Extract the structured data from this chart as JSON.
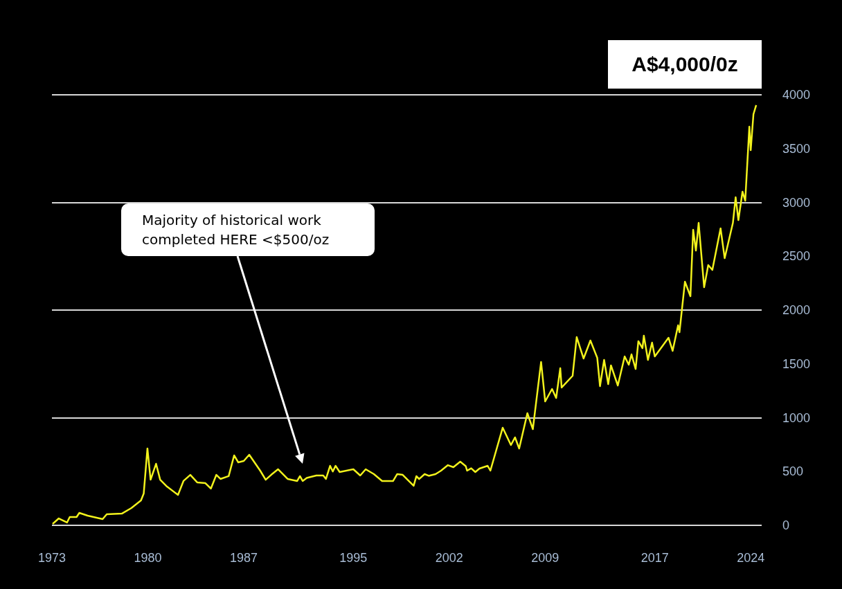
{
  "chart_data": {
    "type": "line",
    "annotations": [
      "A$4,000/0z",
      "Majority of historical work completed HERE <$500/oz"
    ],
    "x": [
      1973.05,
      1973.5,
      1974.1,
      1974.3,
      1974.8,
      1975.0,
      1975.6,
      1976.7,
      1977.0,
      1978.1,
      1978.8,
      1979.5,
      1979.7,
      1979.97,
      1980.2,
      1980.6,
      1980.9,
      1981.4,
      1982.2,
      1982.6,
      1983.1,
      1983.6,
      1984.2,
      1984.6,
      1985.0,
      1985.3,
      1985.9,
      1986.3,
      1986.6,
      1987.0,
      1987.4,
      1988.2,
      1988.6,
      1989.0,
      1989.5,
      1990.2,
      1990.9,
      1991.1,
      1991.3,
      1991.6,
      1992.3,
      1992.8,
      1993.0,
      1993.3,
      1993.5,
      1993.7,
      1994.0,
      1995.0,
      1995.5,
      1995.9,
      1996.5,
      1997.1,
      1997.9,
      1998.2,
      1998.6,
      1999.4,
      1999.6,
      1999.8,
      2000.2,
      2000.5,
      2001.0,
      2001.4,
      2001.9,
      2002.3,
      2002.8,
      2003.2,
      2003.3,
      2003.6,
      2003.9,
      2004.2,
      2004.8,
      2005.0,
      2005.9,
      2006.5,
      2006.8,
      2007.1,
      2007.7,
      2008.1,
      2008.7,
      2009.0,
      2009.5,
      2009.8,
      2010.1,
      2010.2,
      2011.0,
      2011.3,
      2011.8,
      2012.3,
      2012.8,
      2013.0,
      2013.3,
      2013.6,
      2013.8,
      2014.3,
      2014.8,
      2015.1,
      2015.3,
      2015.6,
      2015.8,
      2016.1,
      2016.2,
      2016.5,
      2016.8,
      2017.0,
      2018.0,
      2018.3,
      2018.7,
      2018.8,
      2019.2,
      2019.6,
      2019.8,
      2020.0,
      2020.2,
      2020.6,
      2020.9,
      2021.2,
      2021.8,
      2022.1,
      2022.7,
      2022.9,
      2023.1,
      2023.4,
      2023.6,
      2023.9,
      2024.0,
      2024.2,
      2024.4
    ],
    "series": [
      {
        "color": "#f2f21c",
        "values": [
          13,
          64,
          26,
          77,
          77,
          116,
          90,
          58,
          103,
          109,
          161,
          231,
          296,
          714,
          424,
          572,
          424,
          360,
          283,
          412,
          469,
          399,
          392,
          341,
          469,
          431,
          457,
          650,
          585,
          598,
          656,
          508,
          424,
          469,
          521,
          431,
          412,
          457,
          412,
          440,
          463,
          463,
          431,
          553,
          500,
          553,
          495,
          521,
          463,
          521,
          476,
          412,
          412,
          476,
          469,
          367,
          457,
          430,
          476,
          460,
          476,
          508,
          559,
          540,
          592,
          550,
          508,
          530,
          495,
          527,
          553,
          508,
          907,
          746,
          817,
          714,
          1042,
          894,
          1518,
          1151,
          1267,
          1183,
          1460,
          1280,
          1389,
          1749,
          1550,
          1717,
          1556,
          1293,
          1537,
          1312,
          1486,
          1299,
          1569,
          1492,
          1588,
          1453,
          1711,
          1646,
          1762,
          1537,
          1698,
          1569,
          1743,
          1621,
          1859,
          1794,
          2264,
          2129,
          2746,
          2553,
          2810,
          2212,
          2418,
          2373,
          2759,
          2482,
          2810,
          3048,
          2836,
          3100,
          3016,
          3704,
          3486,
          3820,
          3904
        ]
      }
    ],
    "xlim": [
      1973,
      2024.8
    ],
    "xticks": [
      1973,
      1980,
      1987,
      1995,
      2002,
      2009,
      2017,
      2024
    ],
    "ylim": [
      0,
      4000
    ],
    "yticks": [
      0,
      500,
      1000,
      1500,
      2000,
      2500,
      3000,
      3500,
      4000
    ],
    "grid": "y",
    "marker": "none",
    "line_style": "solid"
  }
}
